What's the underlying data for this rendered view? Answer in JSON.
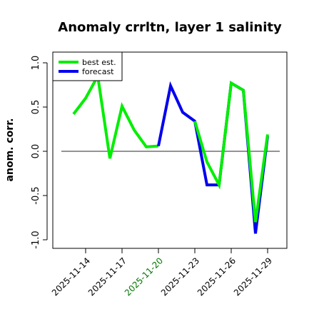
{
  "chart_data": {
    "type": "line",
    "title": "Anomaly crrltn, layer 1 salinity",
    "xlabel": "",
    "ylabel": "anom. corr.",
    "ylim": [
      -1.0,
      1.0
    ],
    "yticks": [
      "-1.0",
      "-0.5",
      "0.0",
      "0.5",
      "1.0"
    ],
    "ytick_values": [
      -1.0,
      -0.5,
      0.0,
      0.5,
      1.0
    ],
    "xtick_labels": [
      "2025-11-14",
      "2025-11-17",
      "2025-11-20",
      "2025-11-23",
      "2025-11-26",
      "2025-11-29"
    ],
    "xtick_colors": [
      "#000000",
      "#000000",
      "#007700",
      "#000000",
      "#000000",
      "#000000"
    ],
    "reference_line": 0.0,
    "series": [
      {
        "name": "best est.",
        "color": "#00ee00",
        "points": [
          [
            "2025-11-13",
            0.42
          ],
          [
            "2025-11-14",
            0.6
          ],
          [
            "2025-11-15",
            0.85
          ],
          [
            "2025-11-16",
            -0.08
          ],
          [
            "2025-11-17",
            0.51
          ],
          [
            "2025-11-18",
            0.24
          ],
          [
            "2025-11-19",
            0.05
          ],
          [
            "2025-11-20",
            0.06
          ]
        ]
      },
      {
        "name": "forecast",
        "color": "#0000ee",
        "points": [
          [
            "2025-11-20",
            0.06
          ],
          [
            "2025-11-21",
            0.74
          ],
          [
            "2025-11-22",
            0.44
          ],
          [
            "2025-11-23",
            0.34
          ],
          [
            "2025-11-24",
            -0.38
          ],
          [
            "2025-11-25",
            -0.38
          ],
          [
            "2025-11-26",
            0.77
          ],
          [
            "2025-11-27",
            0.69
          ],
          [
            "2025-11-28",
            -0.93
          ],
          [
            "2025-11-29",
            0.17
          ]
        ]
      },
      {
        "name": "",
        "color": "#00ee00",
        "points": [
          [
            "2025-11-23",
            0.34
          ],
          [
            "2025-11-24",
            -0.12
          ],
          [
            "2025-11-25",
            -0.38
          ],
          [
            "2025-11-26",
            0.77
          ],
          [
            "2025-11-27",
            0.69
          ],
          [
            "2025-11-28",
            -0.8
          ],
          [
            "2025-11-29",
            0.19
          ]
        ]
      }
    ],
    "legend": {
      "placement": "top-left",
      "entries": [
        {
          "label": "best est.",
          "color": "#00ee00"
        },
        {
          "label": "forecast",
          "color": "#0000ee"
        }
      ]
    },
    "grid": false
  }
}
